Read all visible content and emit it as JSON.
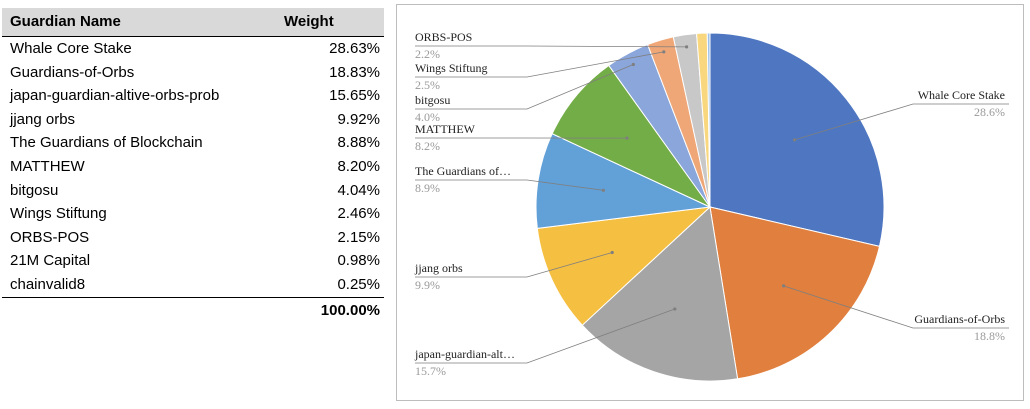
{
  "table": {
    "header": {
      "name": "Guardian Name",
      "weight": "Weight"
    },
    "rows": [
      {
        "name": "Whale Core Stake",
        "weight": "28.63%"
      },
      {
        "name": "Guardians-of-Orbs",
        "weight": "18.83%"
      },
      {
        "name": "japan-guardian-altive-orbs-prob",
        "weight": "15.65%"
      },
      {
        "name": "jjang orbs",
        "weight": "9.92%"
      },
      {
        "name": "The Guardians of Blockchain",
        "weight": "8.88%"
      },
      {
        "name": "MATTHEW",
        "weight": "8.20%"
      },
      {
        "name": "bitgosu",
        "weight": "4.04%"
      },
      {
        "name": "Wings Stiftung",
        "weight": "2.46%"
      },
      {
        "name": "ORBS-POS",
        "weight": "2.15%"
      },
      {
        "name": "21M Capital",
        "weight": "0.98%"
      },
      {
        "name": "chainvalid8",
        "weight": "0.25%"
      }
    ],
    "total": "100.00%"
  },
  "chart_data": {
    "type": "pie",
    "title": "",
    "slices": [
      {
        "label": "Whale Core Stake",
        "value": 28.63,
        "shown_label": "Whale Core Stake",
        "shown_pct": "28.6%",
        "color": "#4f76c0"
      },
      {
        "label": "Guardians-of-Orbs",
        "value": 18.83,
        "shown_label": "Guardians-of-Orbs",
        "shown_pct": "18.8%",
        "color": "#e07f3e"
      },
      {
        "label": "japan-guardian-altive-orbs-prob",
        "value": 15.65,
        "shown_label": "japan-guardian-alt…",
        "shown_pct": "15.7%",
        "color": "#a5a5a5"
      },
      {
        "label": "jjang orbs",
        "value": 9.92,
        "shown_label": "jjang orbs",
        "shown_pct": "9.9%",
        "color": "#f5bf42"
      },
      {
        "label": "The Guardians of Blockchain",
        "value": 8.88,
        "shown_label": "The Guardians of…",
        "shown_pct": "8.9%",
        "color": "#62a0d8"
      },
      {
        "label": "MATTHEW",
        "value": 8.2,
        "shown_label": "MATTHEW",
        "shown_pct": "8.2%",
        "color": "#73ad47"
      },
      {
        "label": "bitgosu",
        "value": 4.04,
        "shown_label": "bitgosu",
        "shown_pct": "4.0%",
        "color": "#8aa6db"
      },
      {
        "label": "Wings Stiftung",
        "value": 2.46,
        "shown_label": "Wings Stiftung",
        "shown_pct": "2.5%",
        "color": "#f0a777"
      },
      {
        "label": "ORBS-POS",
        "value": 2.15,
        "shown_label": "ORBS-POS",
        "shown_pct": "2.2%",
        "color": "#c8c8c8"
      },
      {
        "label": "21M Capital",
        "value": 0.98,
        "color": "#f8d77f"
      },
      {
        "label": "chainvalid8",
        "value": 0.25,
        "color": "#9dc1e8"
      }
    ]
  }
}
